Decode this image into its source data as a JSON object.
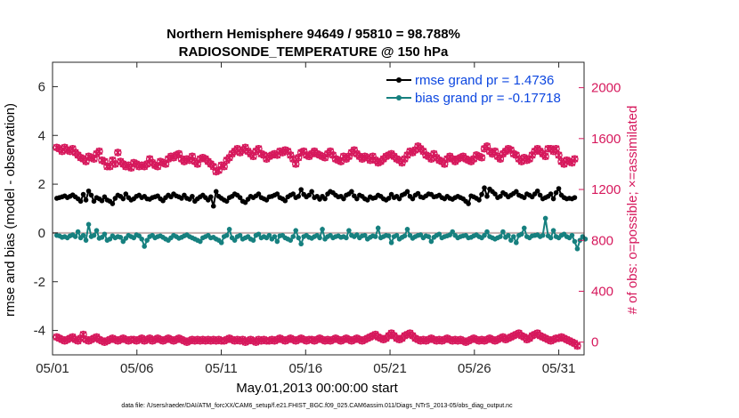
{
  "chart_data": {
    "type": "line",
    "title": "Northern Hemisphere 94649 / 95810 = 98.788%",
    "subtitle": "RADIOSONDE_TEMPERATURE @ 150 hPa",
    "xlabel": "May.01,2013 00:00:00 start",
    "ylabel_left": "rmse and bias (model - observation)",
    "ylabel_right": "# of obs: o=possible; ×=assimilated",
    "footnote": "data file: /Users/raeder/DAI/ATM_forcXX/CAM6_setup/f.e21.FHIST_BGC.f09_025.CAM6assim.011/Diags_NTrS_2013-05/obs_diag_output.nc",
    "x_ticks": [
      "05/01",
      "05/06",
      "05/11",
      "05/16",
      "05/21",
      "05/26",
      "05/31"
    ],
    "x_tick_days": [
      0,
      5,
      10,
      15,
      20,
      25,
      30
    ],
    "xlim": [
      0,
      31.5
    ],
    "ylim_left": [
      -5,
      7
    ],
    "ylim_right": [
      -100,
      2200
    ],
    "y_ticks_left": [
      -4,
      -2,
      0,
      2,
      4,
      6
    ],
    "y_ticks_right": [
      0,
      400,
      800,
      1200,
      1600,
      2000
    ],
    "legend": [
      {
        "label": "rmse grand pr = 1.4736",
        "color": "#000000"
      },
      {
        "label": "bias grand pr = -0.17718",
        "color": "#16807f"
      }
    ],
    "colors": {
      "rmse": "#000000",
      "bias": "#16807f",
      "obs": "#d6185c",
      "zero_line": "#c8b4b4"
    },
    "series": [
      {
        "name": "rmse",
        "values": [
          1.42,
          1.45,
          1.48,
          1.52,
          1.45,
          1.5,
          1.56,
          1.48,
          1.4,
          1.3,
          1.58,
          1.35,
          1.72,
          1.55,
          1.3,
          1.45,
          1.4,
          1.32,
          1.48,
          1.35,
          1.3,
          1.2,
          1.42,
          1.55,
          1.5,
          1.4,
          1.6,
          1.45,
          1.35,
          1.4,
          1.5,
          1.55,
          1.45,
          1.5,
          1.4,
          1.38,
          1.45,
          1.48,
          1.52,
          1.4,
          1.32,
          1.45,
          1.55,
          1.48,
          1.6,
          1.52,
          1.48,
          1.42,
          1.55,
          1.42,
          1.38,
          1.5,
          1.3,
          1.4,
          1.48,
          1.55,
          1.45,
          1.35,
          1.48,
          1.1,
          1.7,
          1.5,
          1.42,
          1.35,
          1.3,
          1.45,
          1.5,
          1.6,
          1.55,
          1.45,
          1.3,
          1.25,
          1.38,
          1.5,
          1.45,
          1.52,
          1.6,
          1.45,
          1.4,
          1.35,
          1.48,
          1.5,
          1.55,
          1.6,
          1.45,
          1.4,
          1.32,
          1.48,
          1.55,
          1.6,
          1.45,
          1.5,
          1.78,
          1.58,
          1.48,
          1.55,
          1.7,
          1.45,
          1.5,
          1.38,
          1.5,
          1.4,
          1.6,
          1.7,
          1.65,
          1.55,
          1.48,
          1.5,
          1.4,
          1.55,
          1.6,
          1.7,
          1.52,
          1.4,
          1.55,
          1.5,
          1.4,
          1.35,
          1.48,
          1.42,
          1.45,
          1.55,
          1.5,
          1.4,
          1.35,
          1.42,
          1.58,
          1.45,
          1.5,
          1.4,
          1.55,
          1.6,
          1.7,
          1.5,
          1.4,
          1.55,
          1.62,
          1.48,
          1.45,
          1.52,
          1.6,
          1.58,
          1.48,
          1.5,
          1.55,
          1.45,
          1.4,
          1.5,
          1.42,
          1.38,
          1.45,
          1.5,
          1.45,
          1.4,
          1.3,
          1.2,
          1.52,
          1.48,
          1.42,
          1.35,
          1.58,
          1.85,
          1.5,
          1.8,
          1.7,
          1.6,
          1.45,
          1.5,
          1.65,
          1.58,
          1.48,
          1.55,
          1.62,
          1.7,
          1.55,
          1.5,
          1.45,
          1.6,
          1.55,
          1.48,
          1.6,
          1.72,
          1.55,
          1.4,
          1.45,
          1.5,
          1.6,
          1.4,
          1.65,
          1.82,
          1.55,
          1.45,
          1.4,
          1.42,
          1.4,
          1.45
        ]
      },
      {
        "name": "bias",
        "values": [
          -0.1,
          -0.12,
          -0.18,
          -0.15,
          -0.2,
          -0.12,
          -0.08,
          -0.15,
          0.05,
          -0.2,
          -0.1,
          -0.3,
          0.35,
          -0.15,
          -0.1,
          0.1,
          -0.22,
          -0.18,
          -0.05,
          -0.3,
          -0.25,
          -0.12,
          -0.2,
          -0.15,
          -0.18,
          -0.35,
          -0.22,
          -0.1,
          -0.15,
          -0.2,
          -0.08,
          -0.12,
          -0.25,
          -0.55,
          -0.3,
          -0.15,
          -0.1,
          -0.2,
          -0.15,
          -0.12,
          -0.18,
          -0.25,
          -0.3,
          -0.2,
          -0.1,
          -0.15,
          -0.22,
          -0.18,
          -0.12,
          -0.08,
          -0.15,
          -0.2,
          -0.25,
          -0.3,
          -0.35,
          -0.2,
          -0.15,
          -0.1,
          -0.2,
          -0.18,
          -0.25,
          -0.3,
          -0.4,
          -0.15,
          -0.1,
          0.15,
          -0.2,
          -0.3,
          -0.15,
          -0.1,
          -0.25,
          -0.2,
          -0.15,
          -0.25,
          -0.3,
          -0.1,
          -0.05,
          -0.2,
          -0.15,
          -0.2,
          -0.1,
          -0.25,
          -0.15,
          -0.35,
          -0.12,
          -0.1,
          -0.2,
          -0.25,
          -0.3,
          -0.15,
          0.1,
          -0.2,
          -0.45,
          -0.15,
          -0.1,
          -0.18,
          -0.22,
          -0.15,
          -0.1,
          -0.2,
          0.15,
          -0.25,
          -0.15,
          -0.1,
          -0.2,
          -0.15,
          -0.12,
          -0.18,
          -0.15,
          -0.2,
          0.1,
          -0.1,
          -0.15,
          -0.08,
          -0.2,
          -0.12,
          -0.1,
          -0.25,
          -0.18,
          -0.12,
          -0.15,
          0.2,
          -0.2,
          -0.15,
          -0.1,
          -0.12,
          -0.4,
          -0.15,
          -0.1,
          -0.25,
          -0.18,
          -0.12,
          0.15,
          -0.1,
          -0.22,
          -0.15,
          -0.1,
          -0.08,
          -0.2,
          -0.12,
          -0.15,
          -0.35,
          -0.18,
          -0.1,
          -0.05,
          -0.2,
          -0.15,
          -0.12,
          -0.08,
          0.05,
          -0.1,
          -0.2,
          -0.15,
          -0.12,
          -0.1,
          -0.2,
          -0.18,
          -0.12,
          -0.08,
          -0.15,
          -0.2,
          -0.1,
          0.05,
          -0.15,
          -0.2,
          -0.25,
          -0.2,
          -0.15,
          0.05,
          -0.18,
          -0.1,
          -0.3,
          -0.15,
          -0.4,
          -0.1,
          -0.05,
          0.2,
          -0.15,
          -0.2,
          -0.12,
          -0.1,
          -0.08,
          -0.15,
          -0.1,
          0.6,
          -0.12,
          -0.2,
          0.1,
          -0.15,
          -0.2,
          -0.1,
          -0.05,
          -0.15,
          -0.2,
          -0.1,
          -0.35,
          -0.65,
          -0.3,
          -0.15,
          -0.25
        ]
      },
      {
        "name": "obs_possible",
        "values": [
          1530,
          1520,
          1500,
          1530,
          1510,
          1500,
          1520,
          1490,
          1470,
          1450,
          1440,
          1420,
          1460,
          1450,
          1440,
          1480,
          1500,
          1430,
          1420,
          1380,
          1380,
          1430,
          1400,
          1490,
          1420,
          1400,
          1380,
          1390,
          1370,
          1410,
          1400,
          1380,
          1390,
          1380,
          1400,
          1440,
          1410,
          1390,
          1380,
          1420,
          1410,
          1400,
          1440,
          1460,
          1450,
          1470,
          1480,
          1440,
          1420,
          1440,
          1430,
          1460,
          1420,
          1400,
          1440,
          1450,
          1440,
          1420,
          1400,
          1380,
          1340,
          1350,
          1390,
          1380,
          1430,
          1450,
          1480,
          1500,
          1520,
          1490,
          1510,
          1530,
          1500,
          1480,
          1460,
          1500,
          1520,
          1480,
          1470,
          1440,
          1460,
          1470,
          1480,
          1470,
          1500,
          1490,
          1510,
          1500,
          1470,
          1440,
          1400,
          1450,
          1490,
          1500,
          1470,
          1460,
          1480,
          1500,
          1480,
          1470,
          1460,
          1450,
          1480,
          1500,
          1470,
          1440,
          1430,
          1420,
          1460,
          1440,
          1460,
          1490,
          1510,
          1480,
          1460,
          1440,
          1460,
          1450,
          1430,
          1460,
          1430,
          1410,
          1420,
          1440,
          1460,
          1470,
          1480,
          1460,
          1440,
          1430,
          1410,
          1440,
          1470,
          1500,
          1490,
          1510,
          1540,
          1520,
          1500,
          1470,
          1460,
          1440,
          1480,
          1450,
          1430,
          1420,
          1400,
          1440,
          1460,
          1440,
          1420,
          1440,
          1450,
          1460,
          1440,
          1430,
          1420,
          1440,
          1470,
          1460,
          1450,
          1520,
          1540,
          1500,
          1480,
          1500,
          1460,
          1440,
          1480,
          1500,
          1520,
          1510,
          1480,
          1470,
          1440,
          1420,
          1450,
          1430,
          1440,
          1470,
          1500,
          1520,
          1500,
          1480,
          1460,
          1520,
          1520,
          1500,
          1520,
          1470,
          1420,
          1400,
          1430,
          1420,
          1410,
          1440
        ]
      },
      {
        "name": "obs_assimilated",
        "values": [
          1530,
          1520,
          1500,
          1530,
          1510,
          1500,
          1520,
          1490,
          1470,
          1450,
          1440,
          1420,
          1460,
          1450,
          1440,
          1480,
          1500,
          1430,
          1420,
          1380,
          1380,
          1430,
          1400,
          1490,
          1420,
          1400,
          1380,
          1390,
          1370,
          1410,
          1400,
          1380,
          1390,
          1380,
          1400,
          1440,
          1410,
          1390,
          1380,
          1420,
          1410,
          1400,
          1440,
          1460,
          1450,
          1470,
          1480,
          1440,
          1420,
          1440,
          1430,
          1460,
          1420,
          1400,
          1440,
          1450,
          1440,
          1420,
          1400,
          1380,
          1340,
          1350,
          1390,
          1380,
          1430,
          1450,
          1480,
          1500,
          1520,
          1490,
          1510,
          1530,
          1500,
          1480,
          1460,
          1500,
          1520,
          1480,
          1470,
          1440,
          1460,
          1470,
          1480,
          1470,
          1500,
          1490,
          1510,
          1500,
          1470,
          1440,
          1400,
          1450,
          1490,
          1500,
          1470,
          1460,
          1480,
          1500,
          1480,
          1470,
          1460,
          1450,
          1480,
          1500,
          1470,
          1440,
          1430,
          1420,
          1460,
          1440,
          1460,
          1490,
          1510,
          1480,
          1460,
          1440,
          1460,
          1450,
          1430,
          1460,
          1430,
          1410,
          1420,
          1440,
          1460,
          1470,
          1480,
          1460,
          1440,
          1430,
          1410,
          1440,
          1470,
          1500,
          1490,
          1510,
          1540,
          1520,
          1500,
          1470,
          1460,
          1440,
          1480,
          1450,
          1430,
          1420,
          1400,
          1440,
          1460,
          1440,
          1420,
          1440,
          1450,
          1460,
          1440,
          1430,
          1420,
          1440,
          1470,
          1460,
          1450,
          1520,
          1540,
          1500,
          1480,
          1500,
          1460,
          1440,
          1480,
          1500,
          1520,
          1510,
          1480,
          1470,
          1440,
          1420,
          1450,
          1430,
          1440,
          1470,
          1500,
          1520,
          1500,
          1480,
          1460,
          1520,
          1520,
          1500,
          1520,
          1470,
          1420,
          1400,
          1430,
          1420,
          1410,
          1440
        ]
      },
      {
        "name": "obs_possible_lower",
        "values": [
          40,
          30,
          20,
          10,
          20,
          30,
          40,
          20,
          10,
          30,
          60,
          20,
          10,
          20,
          30,
          40,
          20,
          10,
          0,
          10,
          20,
          30,
          20,
          10,
          20,
          30,
          20,
          10,
          20,
          20,
          10,
          20,
          30,
          10,
          20,
          30,
          10,
          20,
          30,
          20,
          10,
          20,
          30,
          20,
          10,
          20,
          30,
          20,
          10,
          0,
          10,
          20,
          10,
          20,
          10,
          20,
          10,
          20,
          10,
          20,
          10,
          20,
          10,
          10,
          20,
          30,
          20,
          10,
          20,
          10,
          20,
          0,
          10,
          20,
          10,
          0,
          20,
          10,
          20,
          10,
          10,
          20,
          10,
          20,
          30,
          20,
          10,
          20,
          30,
          20,
          10,
          20,
          30,
          20,
          10,
          20,
          20,
          10,
          20,
          30,
          20,
          10,
          20,
          10,
          20,
          30,
          20,
          10,
          20,
          30,
          20,
          10,
          20,
          30,
          20,
          10,
          20,
          30,
          40,
          50,
          60,
          40,
          30,
          20,
          30,
          50,
          70,
          50,
          30,
          20,
          30,
          50,
          60,
          70,
          50,
          30,
          20,
          10,
          20,
          10,
          20,
          30,
          20,
          10,
          20,
          10,
          20,
          30,
          20,
          10,
          20,
          10,
          20,
          10,
          0,
          10,
          20,
          30,
          20,
          10,
          20,
          10,
          20,
          30,
          20,
          10,
          20,
          30,
          40,
          20,
          30,
          40,
          50,
          60,
          70,
          50,
          40,
          20,
          30,
          50,
          60,
          70,
          50,
          40,
          30,
          20,
          10,
          20,
          30,
          30,
          40,
          30,
          20,
          10,
          0,
          -10,
          -30
        ]
      },
      {
        "name": "obs_assimilated_lower",
        "values": [
          40,
          30,
          20,
          10,
          20,
          30,
          40,
          20,
          10,
          30,
          60,
          20,
          10,
          20,
          30,
          40,
          20,
          10,
          0,
          10,
          20,
          30,
          20,
          10,
          20,
          30,
          20,
          10,
          20,
          20,
          10,
          20,
          30,
          10,
          20,
          30,
          10,
          20,
          30,
          20,
          10,
          20,
          30,
          20,
          10,
          20,
          30,
          20,
          10,
          0,
          10,
          20,
          10,
          20,
          10,
          20,
          10,
          20,
          10,
          20,
          10,
          20,
          10,
          10,
          20,
          30,
          20,
          10,
          20,
          10,
          20,
          0,
          10,
          20,
          10,
          0,
          20,
          10,
          20,
          10,
          10,
          20,
          10,
          20,
          30,
          20,
          10,
          20,
          30,
          20,
          10,
          20,
          30,
          20,
          10,
          20,
          20,
          10,
          20,
          30,
          20,
          10,
          20,
          10,
          20,
          30,
          20,
          10,
          20,
          30,
          20,
          10,
          20,
          30,
          20,
          10,
          20,
          30,
          40,
          50,
          60,
          40,
          30,
          20,
          30,
          50,
          70,
          50,
          30,
          20,
          30,
          50,
          60,
          70,
          50,
          30,
          20,
          10,
          20,
          10,
          20,
          30,
          20,
          10,
          20,
          10,
          20,
          30,
          20,
          10,
          20,
          10,
          20,
          10,
          0,
          10,
          20,
          30,
          20,
          10,
          20,
          10,
          20,
          30,
          20,
          10,
          20,
          30,
          40,
          20,
          30,
          40,
          50,
          60,
          70,
          50,
          40,
          20,
          30,
          50,
          60,
          70,
          50,
          40,
          30,
          20,
          10,
          20,
          30,
          30,
          40,
          30,
          20,
          10,
          0,
          -10,
          -30
        ]
      }
    ]
  }
}
